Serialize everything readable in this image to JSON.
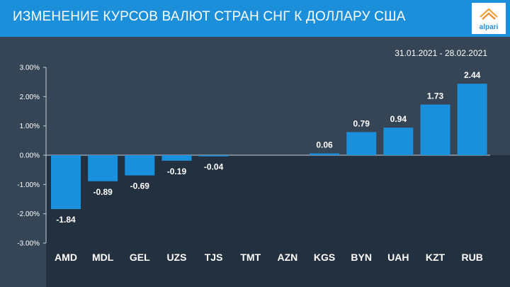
{
  "header": {
    "title": "ИЗМЕНЕНИЕ КУРСОВ ВАЛЮТ СТРАН СНГ К ДОЛЛАРУ США",
    "logo_text": "alpari"
  },
  "date_range": "31.01.2021   -  28.02.2021",
  "colors": {
    "header": "#1b8fd9",
    "background": "#354555",
    "negative_area": "#23303f",
    "bar": "#1a8fdc"
  },
  "chart_data": {
    "type": "bar",
    "categories": [
      "AMD",
      "MDL",
      "GEL",
      "UZS",
      "TJS",
      "TMT",
      "AZN",
      "KGS",
      "BYN",
      "UAH",
      "KZT",
      "RUB"
    ],
    "values": [
      -1.84,
      -0.89,
      -0.69,
      -0.19,
      -0.04,
      0,
      0,
      0.06,
      0.79,
      0.94,
      1.73,
      2.44
    ],
    "data_labels": [
      "-1.84",
      "-0.89",
      "-0.69",
      "-0.19",
      "-0.04",
      "",
      "",
      "0.06",
      "0.79",
      "0.94",
      "1.73",
      "2.44"
    ],
    "yticks": [
      3,
      2,
      1,
      0,
      -1,
      -2,
      -3
    ],
    "ytick_labels": [
      "3.00%",
      "2.00%",
      "1.00%",
      "0.00%",
      "-1.00%",
      "-2.00%",
      "-3.00%"
    ],
    "ylim": [
      -3,
      3
    ],
    "grid": false,
    "legend": "none"
  }
}
